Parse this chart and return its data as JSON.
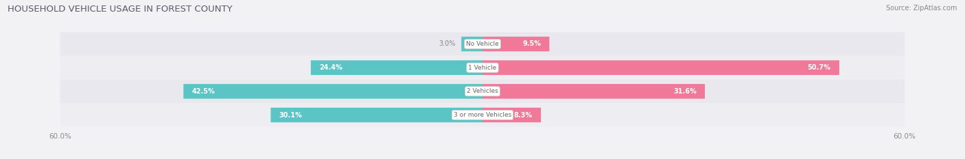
{
  "title": "HOUSEHOLD VEHICLE USAGE IN FOREST COUNTY",
  "source": "Source: ZipAtlas.com",
  "categories": [
    "No Vehicle",
    "1 Vehicle",
    "2 Vehicles",
    "3 or more Vehicles"
  ],
  "owner_values": [
    3.0,
    24.4,
    42.5,
    30.1
  ],
  "renter_values": [
    9.5,
    50.7,
    31.6,
    8.3
  ],
  "owner_color": "#5BC4C4",
  "renter_color": "#F07898",
  "bg_color": "#F2F2F5",
  "row_bg_even": "#E8E8EE",
  "row_bg_odd": "#EDEDF2",
  "axis_max": 60.0,
  "text_color": "#888888",
  "label_inside_color": "#FFFFFF",
  "center_label_color": "#666666",
  "axis_label_fontsize": 7.5,
  "bar_label_fontsize": 7.0,
  "cat_label_fontsize": 6.5,
  "title_fontsize": 9.5,
  "source_fontsize": 7.0,
  "legend_fontsize": 7.5
}
